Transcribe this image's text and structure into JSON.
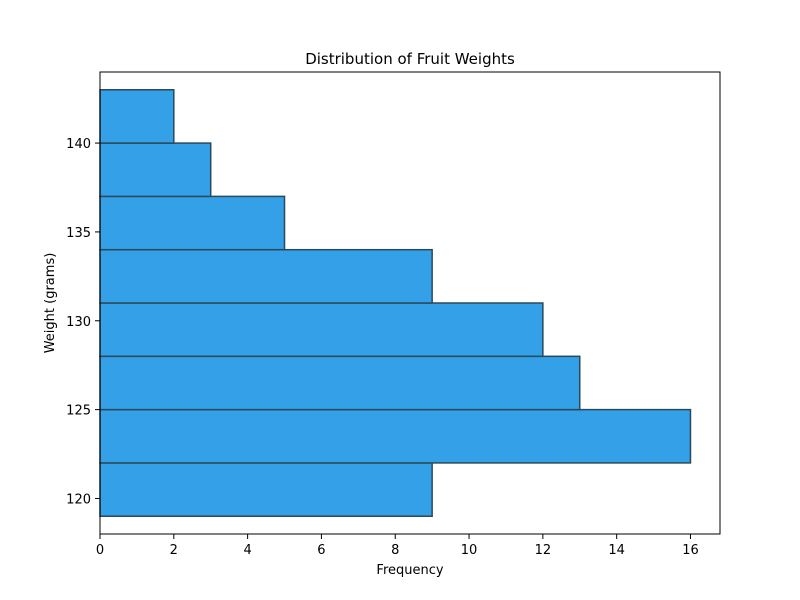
{
  "chart_data": {
    "type": "bar",
    "orientation": "horizontal",
    "title": "Distribution of Fruit Weights",
    "xlabel": "Frequency",
    "ylabel": "Weight (grams)",
    "xlim": [
      0,
      16.8
    ],
    "ylim": [
      118,
      144
    ],
    "x_ticks": [
      0,
      2,
      4,
      6,
      8,
      10,
      12,
      14,
      16
    ],
    "y_ticks": [
      120,
      125,
      130,
      135,
      140
    ],
    "bins": [
      {
        "from": 119,
        "to": 122,
        "count": 9
      },
      {
        "from": 122,
        "to": 125,
        "count": 16
      },
      {
        "from": 125,
        "to": 128,
        "count": 13
      },
      {
        "from": 128,
        "to": 131,
        "count": 12
      },
      {
        "from": 131,
        "to": 134,
        "count": 9
      },
      {
        "from": 134,
        "to": 137,
        "count": 5
      },
      {
        "from": 137,
        "to": 140,
        "count": 3
      },
      {
        "from": 140,
        "to": 143,
        "count": 2
      }
    ],
    "bar_color": "#33a0e8",
    "edge_color": "#2a4a5a",
    "grid": false
  }
}
